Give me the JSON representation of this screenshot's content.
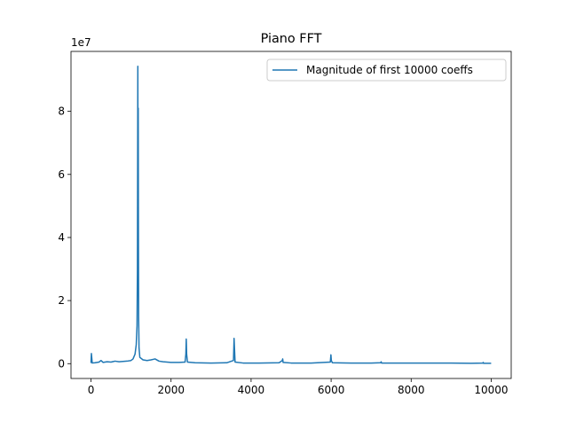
{
  "chart_data": {
    "type": "line",
    "title": "Piano FFT",
    "y_offset_label": "1e7",
    "x": [
      0,
      10,
      30,
      100,
      200,
      250,
      300,
      400,
      500,
      600,
      700,
      800,
      900,
      1000,
      1050,
      1100,
      1130,
      1150,
      1160,
      1170,
      1175,
      1180,
      1185,
      1190,
      1200,
      1220,
      1300,
      1400,
      1500,
      1600,
      1700,
      1800,
      2000,
      2200,
      2350,
      2370,
      2380,
      2390,
      2410,
      2600,
      3000,
      3400,
      3560,
      3575,
      3585,
      3600,
      3800,
      4200,
      4700,
      4780,
      4790,
      4800,
      5000,
      5500,
      5980,
      5995,
      6005,
      6030,
      6500,
      7000,
      7240,
      7250,
      7260,
      7500,
      8000,
      8500,
      9000,
      9500,
      9790,
      9800,
      9810,
      9999
    ],
    "series": [
      {
        "name": "Magnitude of first 10000 coeffs",
        "color": "#1f77b4",
        "values": [
          0.02,
          0.32,
          0.02,
          0.03,
          0.05,
          0.1,
          0.04,
          0.06,
          0.05,
          0.08,
          0.06,
          0.07,
          0.08,
          0.1,
          0.15,
          0.3,
          0.6,
          1.2,
          3,
          9.43,
          5,
          8.1,
          4.2,
          1.5,
          0.5,
          0.2,
          0.12,
          0.1,
          0.12,
          0.15,
          0.08,
          0.06,
          0.04,
          0.04,
          0.05,
          0.3,
          0.78,
          0.3,
          0.05,
          0.03,
          0.02,
          0.03,
          0.1,
          0.8,
          0.5,
          0.05,
          0.02,
          0.02,
          0.03,
          0.1,
          0.15,
          0.04,
          0.02,
          0.02,
          0.05,
          0.28,
          0.1,
          0.03,
          0.02,
          0.02,
          0.03,
          0.06,
          0.02,
          0.02,
          0.02,
          0.02,
          0.02,
          0.01,
          0.02,
          0.04,
          0.01,
          0.01
        ]
      }
    ],
    "xlim": [
      -500,
      10500
    ],
    "ylim": [
      -0.47,
      9.9
    ],
    "xticks": [
      0,
      2000,
      4000,
      6000,
      8000,
      10000
    ],
    "yticks": [
      0,
      2,
      4,
      6,
      8
    ],
    "grid": false,
    "legend": "upper-right"
  }
}
